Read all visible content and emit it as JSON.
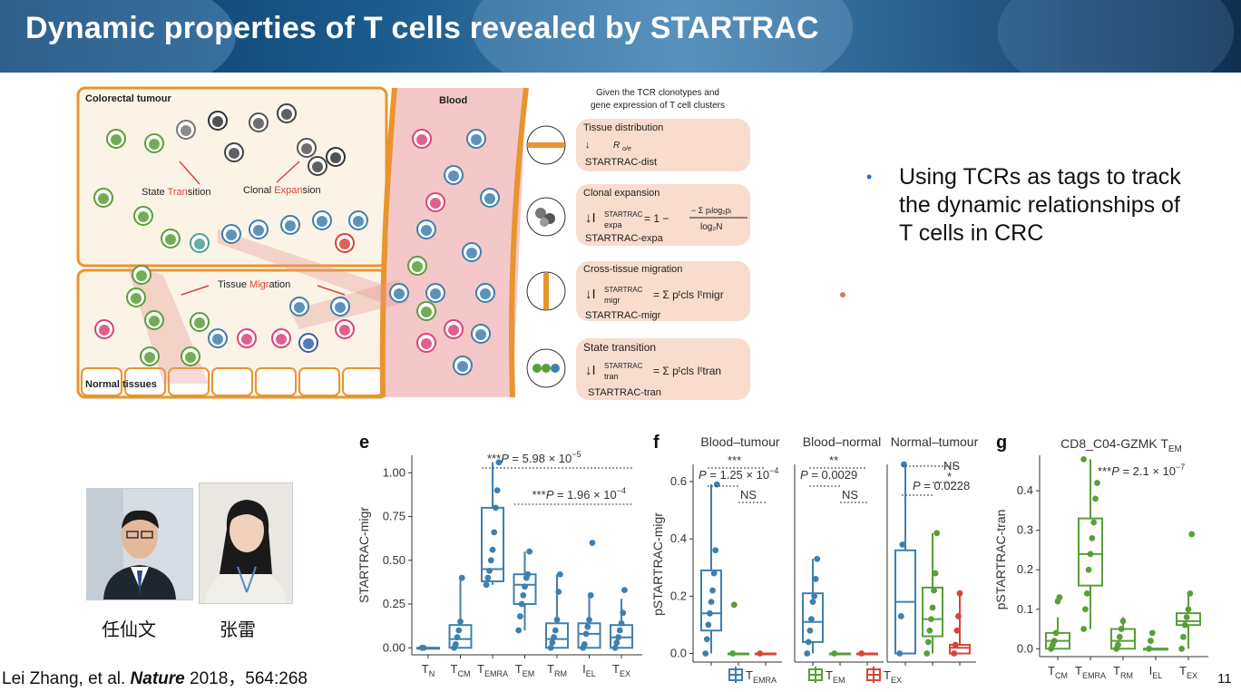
{
  "slide": {
    "title": "Dynamic properties of T cells revealed by STARTRAC",
    "bullet": "Using TCRs as tags to track the dynamic relationships of T cells in CRC",
    "citation_author": "Lei Zhang, et al. ",
    "citation_journal": "Nature",
    "citation_rest": " 2018，564:268",
    "page_number": "11",
    "colors": {
      "banner": "#1b5a8c",
      "accent_blue": "#3f7fae",
      "accent_green": "#5a9e3a",
      "accent_red": "#d9443a",
      "tissue_border": "#e8952e"
    }
  },
  "schematic": {
    "labels": {
      "colorectal": "Colorectal tumour",
      "blood": "Blood",
      "normal": "Normal tissues",
      "state_pre": "State ",
      "state_hl": "Tran",
      "state_post": "sition",
      "clonal_pre": "Clonal ",
      "clonal_hl": "Expan",
      "clonal_post": "sion",
      "migr_pre": "Tissue ",
      "migr_hl": "Migr",
      "migr_post": "ation"
    },
    "header_line1": "Given the TCR clonotypes and",
    "header_line2": "gene expression of T cell clusters",
    "boxes": [
      {
        "title": "Tissue distribution",
        "formula": "R o/e",
        "name": "STARTRAC-dist"
      },
      {
        "title": "Clonal expansion",
        "formula": "I expa STARTRAC = 1 − (−Σ p log2 p) / log2 N",
        "name": "STARTRAC-expa"
      },
      {
        "title": "Cross-tissue migration",
        "formula": "I migr STARTRAC = Σ p cls I migr",
        "name": "STARTRAC-migr"
      },
      {
        "title": "State transition",
        "formula": "I tran STARTRAC = Σ p cls I tran",
        "name": "STARTRAC-tran"
      }
    ]
  },
  "people": [
    {
      "name": "任仙文"
    },
    {
      "name": "张雷"
    }
  ],
  "chart_data": [
    {
      "panel": "e",
      "type": "box",
      "ylabel": "STARTRAC-migr",
      "ylim": [
        -0.04,
        1.1
      ],
      "yticks": [
        "0.00",
        "0.25",
        "0.50",
        "0.75",
        "1.00"
      ],
      "categories": [
        "TN",
        "TCM",
        "TEMRA",
        "TEM",
        "TRM",
        "IEL",
        "TEX"
      ],
      "boxes": [
        {
          "q1": 0.0,
          "median": 0.0,
          "q3": 0.0,
          "lo": 0.0,
          "hi": 0.0,
          "points": [
            0.0,
            0.0
          ]
        },
        {
          "q1": 0.0,
          "median": 0.05,
          "q3": 0.13,
          "lo": 0.0,
          "hi": 0.4,
          "points": [
            0.0,
            0.02,
            0.06,
            0.1,
            0.15,
            0.4
          ]
        },
        {
          "q1": 0.38,
          "median": 0.45,
          "q3": 0.8,
          "lo": 0.36,
          "hi": 1.06,
          "points": [
            0.36,
            0.4,
            0.44,
            0.5,
            0.56,
            0.66,
            0.8,
            0.9,
            1.06
          ]
        },
        {
          "q1": 0.25,
          "median": 0.36,
          "q3": 0.42,
          "lo": 0.1,
          "hi": 0.55,
          "points": [
            0.1,
            0.18,
            0.25,
            0.3,
            0.35,
            0.4,
            0.42,
            0.55
          ]
        },
        {
          "q1": 0.0,
          "median": 0.05,
          "q3": 0.14,
          "lo": 0.0,
          "hi": 0.42,
          "points": [
            0.0,
            0.03,
            0.06,
            0.1,
            0.16,
            0.32,
            0.42
          ]
        },
        {
          "q1": 0.0,
          "median": 0.08,
          "q3": 0.14,
          "lo": 0.0,
          "hi": 0.3,
          "points": [
            0.0,
            0.02,
            0.08,
            0.12,
            0.16,
            0.3,
            0.6
          ]
        },
        {
          "q1": 0.0,
          "median": 0.06,
          "q3": 0.13,
          "lo": 0.0,
          "hi": 0.28,
          "points": [
            0.0,
            0.03,
            0.06,
            0.1,
            0.14,
            0.2,
            0.33
          ]
        }
      ],
      "annotations": [
        {
          "text_pre": "***",
          "text_p": "P",
          "text_post": " = 5.98 × 10",
          "exp": "−5",
          "from": 2,
          "to": 6
        },
        {
          "text_pre": "***",
          "text_p": "P",
          "text_post": " = 1.96 × 10",
          "exp": "−4",
          "from": 3,
          "to": 6
        }
      ],
      "color": "#3f7fae"
    },
    {
      "panel": "f",
      "type": "box",
      "ylabel": "pSTARTRAC-migr",
      "ylim": [
        -0.03,
        0.66
      ],
      "yticks": [
        "0.0",
        "0.2",
        "0.4",
        "0.6"
      ],
      "facets": [
        {
          "title": "Blood–tumour",
          "stat_top": "***",
          "p_text": "P = 1.25 × 10",
          "p_exp": "−4",
          "ns": "NS"
        },
        {
          "title": "Blood–normal",
          "stat_top": "**",
          "p_text": "P = 0.0029",
          "p_exp": "",
          "ns": "NS"
        },
        {
          "title": "Normal–tumour",
          "stat_top": "NS",
          "p_text": "P = 0.0228",
          "p_exp": "",
          "ns": "*"
        }
      ],
      "legend": [
        "TEMRA",
        "TEM",
        "TEX"
      ],
      "legend_colors": [
        "#3f7fae",
        "#5a9e3a",
        "#d9443a"
      ],
      "series": [
        [
          {
            "q1": 0.08,
            "median": 0.14,
            "q3": 0.29,
            "lo": 0.0,
            "hi": 0.59,
            "points": [
              0.0,
              0.05,
              0.1,
              0.14,
              0.18,
              0.22,
              0.28,
              0.36,
              0.59
            ]
          },
          {
            "q1": 0.0,
            "median": 0.0,
            "q3": 0.0,
            "lo": 0.0,
            "hi": 0.0,
            "points": [
              0.0,
              0.17
            ]
          },
          {
            "q1": 0.0,
            "median": 0.0,
            "q3": 0.0,
            "lo": 0.0,
            "hi": 0.0,
            "points": [
              0.0
            ]
          }
        ],
        [
          {
            "q1": 0.04,
            "median": 0.11,
            "q3": 0.21,
            "lo": 0.0,
            "hi": 0.33,
            "points": [
              0.0,
              0.04,
              0.08,
              0.12,
              0.18,
              0.2,
              0.26,
              0.33
            ]
          },
          {
            "q1": 0.0,
            "median": 0.0,
            "q3": 0.0,
            "lo": 0.0,
            "hi": 0.0,
            "points": [
              0.0
            ]
          },
          {
            "q1": 0.0,
            "median": 0.0,
            "q3": 0.0,
            "lo": 0.0,
            "hi": 0.0,
            "points": [
              0.0
            ]
          }
        ],
        [
          {
            "q1": 0.0,
            "median": 0.18,
            "q3": 0.36,
            "lo": 0.0,
            "hi": 0.66,
            "points": [
              0.0,
              0.13,
              0.38,
              0.66
            ]
          },
          {
            "q1": 0.06,
            "median": 0.12,
            "q3": 0.23,
            "lo": 0.0,
            "hi": 0.42,
            "points": [
              0.0,
              0.04,
              0.08,
              0.12,
              0.16,
              0.22,
              0.28,
              0.42
            ]
          },
          {
            "q1": 0.0,
            "median": 0.02,
            "q3": 0.03,
            "lo": 0.0,
            "hi": 0.21,
            "points": [
              0.0,
              0.03,
              0.08,
              0.13,
              0.21
            ]
          }
        ]
      ]
    },
    {
      "panel": "g",
      "type": "box",
      "title": "CD8_C04-GZMK TEM",
      "ylabel": "pSTARTRAC-tran",
      "ylim": [
        -0.02,
        0.49
      ],
      "yticks": [
        "0.0",
        "0.1",
        "0.2",
        "0.3",
        "0.4"
      ],
      "categories": [
        "TCM",
        "TEMRA",
        "TRM",
        "IEL",
        "TEX"
      ],
      "boxes": [
        {
          "q1": 0.0,
          "median": 0.02,
          "q3": 0.04,
          "lo": 0.0,
          "hi": 0.08,
          "points": [
            0.0,
            0.01,
            0.02,
            0.04,
            0.12,
            0.13
          ]
        },
        {
          "q1": 0.16,
          "median": 0.24,
          "q3": 0.33,
          "lo": 0.05,
          "hi": 0.48,
          "points": [
            0.05,
            0.1,
            0.14,
            0.2,
            0.24,
            0.28,
            0.32,
            0.38,
            0.42,
            0.48
          ]
        },
        {
          "q1": 0.0,
          "median": 0.02,
          "q3": 0.05,
          "lo": 0.0,
          "hi": 0.08,
          "points": [
            0.0,
            0.01,
            0.03,
            0.05,
            0.07
          ]
        },
        {
          "q1": 0.0,
          "median": 0.0,
          "q3": 0.0,
          "lo": 0.0,
          "hi": 0.0,
          "points": [
            0.0,
            0.02,
            0.04
          ]
        },
        {
          "q1": 0.06,
          "median": 0.07,
          "q3": 0.09,
          "lo": 0.0,
          "hi": 0.14,
          "points": [
            0.0,
            0.03,
            0.06,
            0.08,
            0.1,
            0.14,
            0.29
          ]
        }
      ],
      "annotation": {
        "text_pre": "***",
        "text_p": "P",
        "text_post": " = 2.1 × 10",
        "exp": "−7"
      },
      "color": "#5a9e3a"
    }
  ]
}
